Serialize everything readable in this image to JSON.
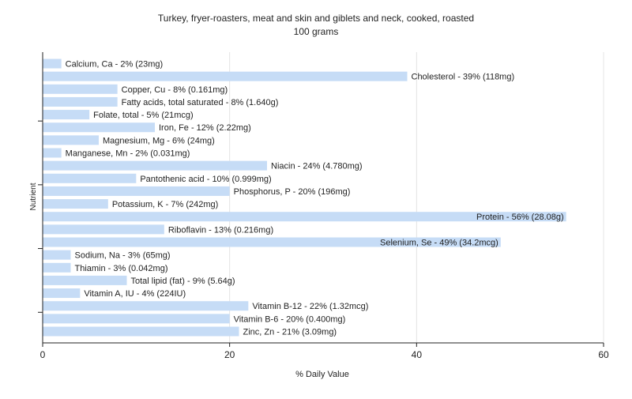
{
  "chart_data": {
    "type": "bar",
    "orientation": "horizontal",
    "title": "Turkey, fryer-roasters, meat and skin and giblets and neck, cooked, roasted",
    "subtitle": "100 grams",
    "xlabel": "% Daily Value",
    "ylabel": "Nutrient",
    "xlim": [
      0,
      60
    ],
    "xticks": [
      0,
      20,
      40,
      60
    ],
    "grid": "vertical",
    "bar_color": "#c6dcf6",
    "categories": [
      "Calcium, Ca",
      "Cholesterol",
      "Copper, Cu",
      "Fatty acids, total saturated",
      "Folate, total",
      "Iron, Fe",
      "Magnesium, Mg",
      "Manganese, Mn",
      "Niacin",
      "Pantothenic acid",
      "Phosphorus, P",
      "Potassium, K",
      "Protein",
      "Riboflavin",
      "Selenium, Se",
      "Sodium, Na",
      "Thiamin",
      "Total lipid (fat)",
      "Vitamin A, IU",
      "Vitamin B-12",
      "Vitamin B-6",
      "Zinc, Zn"
    ],
    "values": [
      2,
      39,
      8,
      8,
      5,
      12,
      6,
      2,
      24,
      10,
      20,
      7,
      56,
      13,
      49,
      3,
      3,
      9,
      4,
      22,
      20,
      21
    ],
    "labels": [
      "Calcium, Ca - 2% (23mg)",
      "Cholesterol - 39% (118mg)",
      "Copper, Cu - 8% (0.161mg)",
      "Fatty acids, total saturated - 8% (1.640g)",
      "Folate, total - 5% (21mcg)",
      "Iron, Fe - 12% (2.22mg)",
      "Magnesium, Mg - 6% (24mg)",
      "Manganese, Mn - 2% (0.031mg)",
      "Niacin - 24% (4.780mg)",
      "Pantothenic acid - 10% (0.999mg)",
      "Phosphorus, P - 20% (196mg)",
      "Potassium, K - 7% (242mg)",
      "Protein - 56% (28.08g)",
      "Riboflavin - 13% (0.216mg)",
      "Selenium, Se - 49% (34.2mcg)",
      "Sodium, Na - 3% (65mg)",
      "Thiamin - 3% (0.042mg)",
      "Total lipid (fat) - 9% (5.64g)",
      "Vitamin A, IU - 4% (224IU)",
      "Vitamin B-12 - 22% (1.32mcg)",
      "Vitamin B-6 - 20% (0.400mg)",
      "Zinc, Zn - 21% (3.09mg)"
    ],
    "inside_label_categories": [
      "Protein",
      "Selenium, Se"
    ]
  }
}
